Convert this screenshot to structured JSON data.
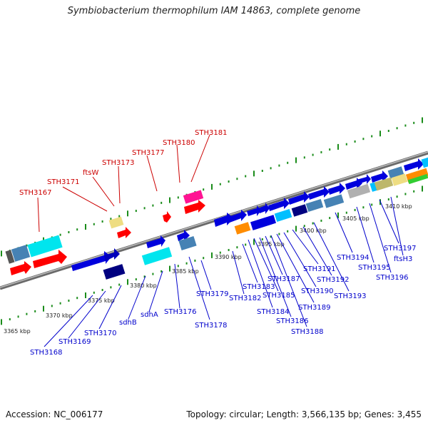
{
  "title": "Symbiobacterium thermophilum IAM 14863, complete genome",
  "footer": {
    "accession": "Accession: NC_006177",
    "summary": "Topology: circular; Length: 3,566,135 bp; Genes: 3,455"
  },
  "colors": {
    "top_strand_label": "#cc0000",
    "bottom_strand_label": "#0000cc",
    "tick": "#1a8c1a",
    "backbone": "#808080"
  },
  "scale_labels": [
    "3365 kbp",
    "3370 kbp",
    "3375 kbp",
    "3380 kbp",
    "3385 kbp",
    "3390 kbp",
    "3395 kbp",
    "3400 kbp",
    "3405 kbp",
    "3410 kbp"
  ],
  "top_labels": [
    "STH3167",
    "STH3171",
    "ftsW",
    "STH3173",
    "STH3177",
    "STH3180",
    "STH3181"
  ],
  "bottom_labels": [
    "STH3168",
    "STH3169",
    "STH3170",
    "sdhB",
    "sdhA",
    "STH3176",
    "STH3178",
    "STH3179",
    "STH3182",
    "STH3183",
    "STH3184",
    "STH3185",
    "STH3186",
    "STH3187",
    "STH3188",
    "STH3189",
    "STH3190",
    "STH3191",
    "STH3192",
    "STH3193",
    "STH3194",
    "STH3195",
    "STH3196",
    "STH3197",
    "ftsH3"
  ]
}
